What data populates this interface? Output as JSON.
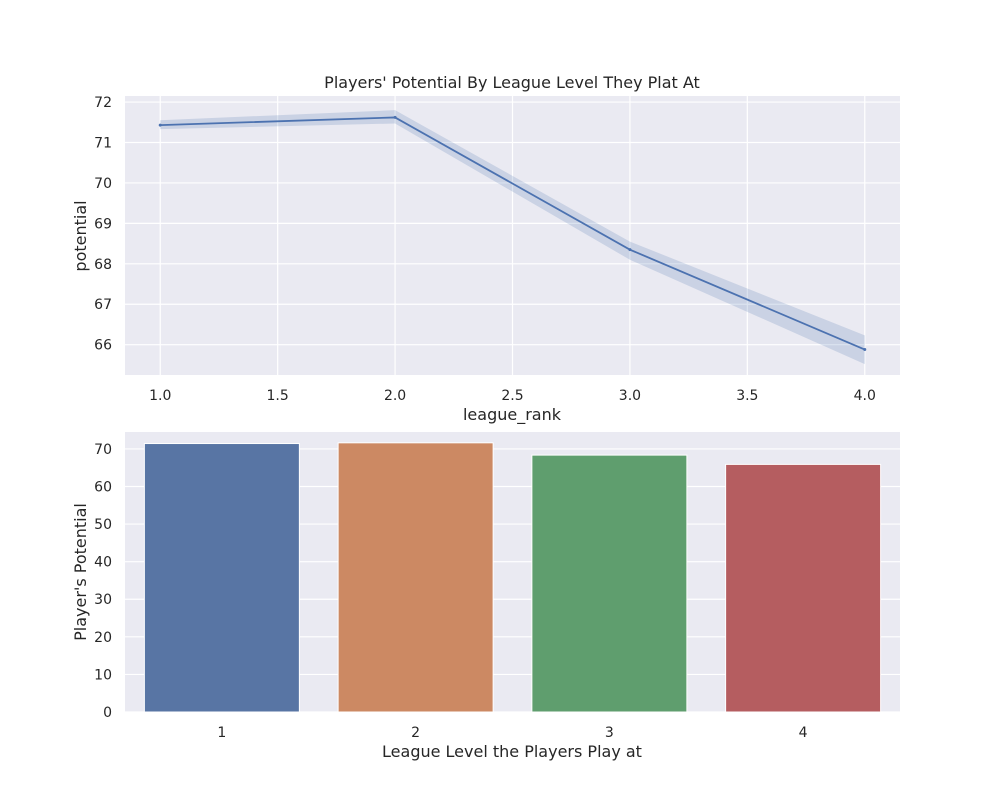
{
  "chart_data": [
    {
      "type": "line",
      "title": "Players' Potential By League Level They Plat At",
      "xlabel": "league_rank",
      "ylabel": "potential",
      "x": [
        1.0,
        2.0,
        3.0,
        4.0
      ],
      "series": [
        {
          "values": [
            71.43,
            71.62,
            68.35,
            65.88
          ],
          "ci_lower": [
            71.33,
            71.47,
            68.1,
            65.52
          ],
          "ci_upper": [
            71.55,
            71.8,
            68.55,
            66.23
          ]
        }
      ],
      "xlim": [
        0.85,
        4.15
      ],
      "ylim": [
        65.25,
        72.15
      ],
      "xticks": [
        1.0,
        1.5,
        2.0,
        2.5,
        3.0,
        3.5,
        4.0
      ],
      "xtick_labels": [
        "1.0",
        "1.5",
        "2.0",
        "2.5",
        "3.0",
        "3.5",
        "4.0"
      ],
      "yticks": [
        66,
        67,
        68,
        69,
        70,
        71,
        72
      ],
      "ytick_labels": [
        "66",
        "67",
        "68",
        "69",
        "70",
        "71",
        "72"
      ],
      "grid": true,
      "colors": {
        "line": "#4c72b0",
        "band": "#4c72b0",
        "background": "#eaeaf2"
      }
    },
    {
      "type": "bar",
      "title": "",
      "xlabel": "League Level the Players Play at",
      "ylabel": "Player's Potential",
      "categories": [
        "1",
        "2",
        "3",
        "4"
      ],
      "values": [
        71.43,
        71.62,
        68.35,
        65.88
      ],
      "ylim": [
        0,
        74.5
      ],
      "yticks": [
        0,
        10,
        20,
        30,
        40,
        50,
        60,
        70
      ],
      "ytick_labels": [
        "0",
        "10",
        "20",
        "30",
        "40",
        "50",
        "60",
        "70"
      ],
      "grid": true,
      "colors": {
        "bars": [
          "#5875a4",
          "#cc8963",
          "#5f9e6e",
          "#b55d60"
        ],
        "background": "#eaeaf2"
      }
    }
  ]
}
